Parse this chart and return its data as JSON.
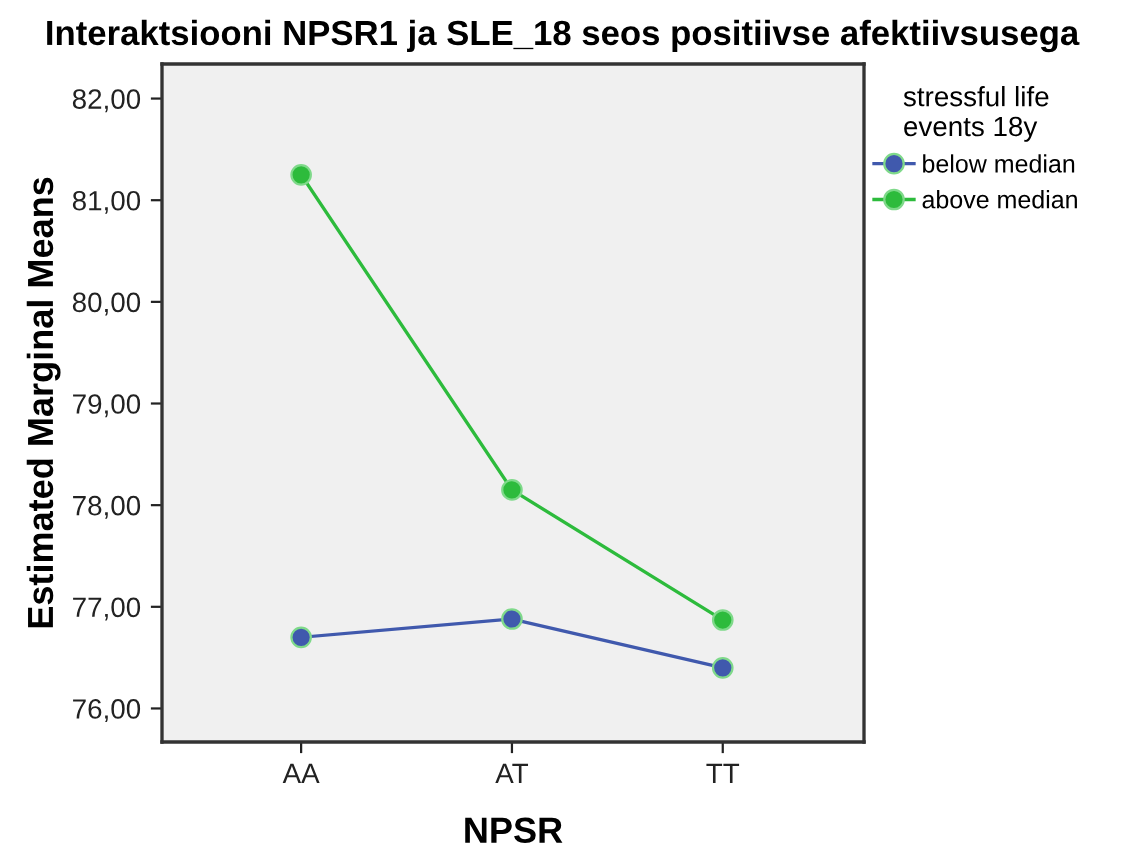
{
  "chart_data": {
    "type": "line",
    "title": "Interaktsiooni NPSR1 ja SLE_18 seos positiivse afektiivsusega",
    "xlabel": "NPSR",
    "ylabel": "Estimated Marginal Means",
    "legend_title": "stressful life\nevents 18y",
    "categories": [
      "AA",
      "AT",
      "TT"
    ],
    "series": [
      {
        "name": "below median",
        "color": "#4059ad",
        "values": [
          76.7,
          76.88,
          76.4
        ]
      },
      {
        "name": "above median",
        "color": "#2dbb3c",
        "values": [
          81.25,
          78.15,
          76.87
        ]
      }
    ],
    "ylim": [
      75.67,
      82.34
    ],
    "yticks": [
      {
        "value": 76,
        "label": "76,00"
      },
      {
        "value": 77,
        "label": "77,00"
      },
      {
        "value": 78,
        "label": "78,00"
      },
      {
        "value": 79,
        "label": "79,00"
      },
      {
        "value": 80,
        "label": "80,00"
      },
      {
        "value": 81,
        "label": "81,00"
      },
      {
        "value": 82,
        "label": "82,00"
      }
    ],
    "grid": false,
    "legend": "right",
    "marker": "circle",
    "line_style": "solid"
  }
}
